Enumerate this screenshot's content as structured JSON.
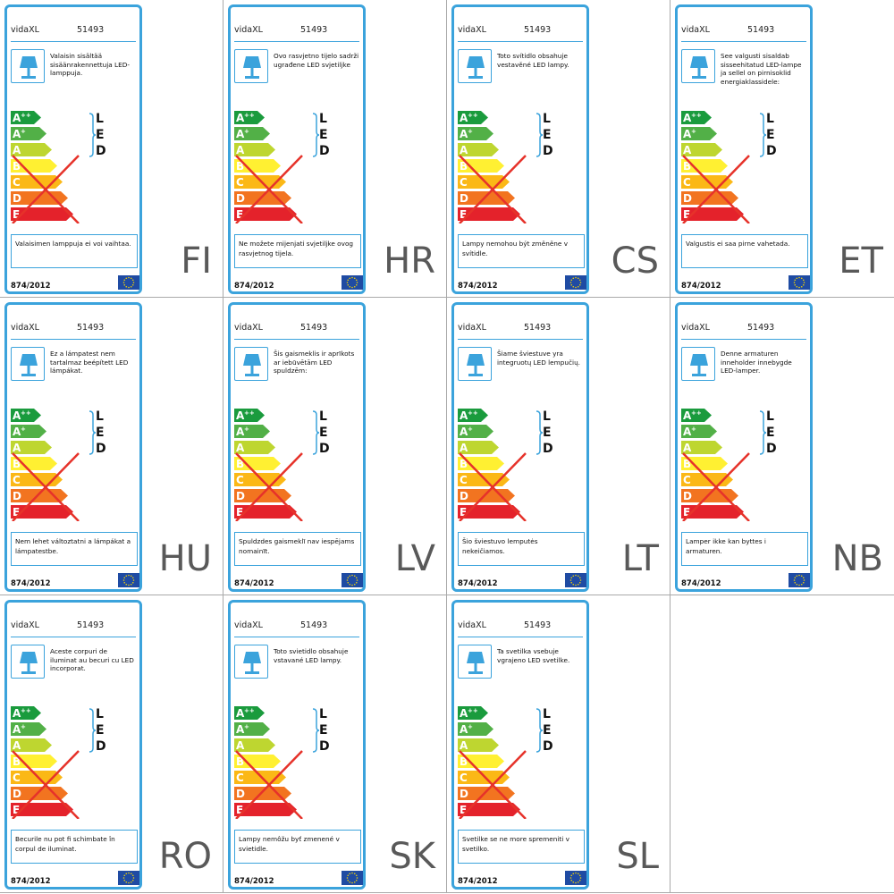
{
  "colors": {
    "frame": "#3ba3dc",
    "grid_line": "#a9a9a9",
    "eu_blue": "#1f4ba3",
    "eu_star": "#f5d300",
    "cross": "#e6322a"
  },
  "label_common": {
    "brand": "vidaXL",
    "model": "51493",
    "regulation": "874/2012",
    "led_letters": [
      "L",
      "E",
      "D"
    ],
    "icons": [
      "lamp-icon",
      "energy-scale",
      "eu-flag-icon"
    ]
  },
  "energy_classes": [
    {
      "label": "A",
      "sup": "++",
      "color": "#1a9b3d"
    },
    {
      "label": "A",
      "sup": "+",
      "color": "#52b047"
    },
    {
      "label": "A",
      "sup": "",
      "color": "#bed630"
    },
    {
      "label": "B",
      "sup": "",
      "color": "#fff032"
    },
    {
      "label": "C",
      "sup": "",
      "color": "#fbb816"
    },
    {
      "label": "D",
      "sup": "",
      "color": "#f27420"
    },
    {
      "label": "E",
      "sup": "",
      "color": "#e4222b"
    }
  ],
  "labels": [
    {
      "lang": "FI",
      "desc": "Valaisin sisältää sisäänrakennettuja LED-lamppuja.",
      "note": "Valaisimen lamppuja ei voi vaihtaa."
    },
    {
      "lang": "HR",
      "desc": "Ovo rasvjetno tijelo sadrži ugrađene LED svjetiljke",
      "note": "Ne možete mijenjati svjetiljke ovog rasvjetnog tijela."
    },
    {
      "lang": "CS",
      "desc": "Toto svítidlo obsahuje vestavěné LED lampy.",
      "note": "Lampy nemohou být změněne v svítidle."
    },
    {
      "lang": "ET",
      "desc": "See valgusti sisaldab sisseehitatud LED-lampe ja sellel on pirnisoklid energiaklassidele:",
      "note": "Valgustis ei saa pirne vahetada."
    },
    {
      "lang": "HU",
      "desc": "Ez a lámpatest nem tartalmaz beépített LED lámpákat.",
      "note": "Nem lehet változtatni a lámpákat a lámpatestbe."
    },
    {
      "lang": "LV",
      "desc": "Šis gaismeklis ir aprīkots ar iebūvētām LED spuldzēm:",
      "note": "Spuldzdes gaismeklī nav iespējams nomainīt."
    },
    {
      "lang": "LT",
      "desc": "Šiame šviestuve yra integruotų LED lempučių.",
      "note": "Šio šviestuvo lemputės nekeičiamos."
    },
    {
      "lang": "NB",
      "desc": "Denne armaturen inneholder innebygde LED-lamper.",
      "note": "Lamper ikke kan byttes i armaturen."
    },
    {
      "lang": "RO",
      "desc": "Aceste corpuri de iluminat au becuri cu LED incorporat.",
      "note": "Becurile nu pot fi schimbate în corpul de iluminat."
    },
    {
      "lang": "SK",
      "desc": "Toto svietidlo obsahuje vstavané LED lampy.",
      "note": "Lampy nemôžu byť zmenené v svietidle."
    },
    {
      "lang": "SL",
      "desc": "Ta svetilka vsebuje vgrajeno LED svetilke.",
      "note": "Svetilke se ne more spremeniti v svetilko."
    }
  ]
}
